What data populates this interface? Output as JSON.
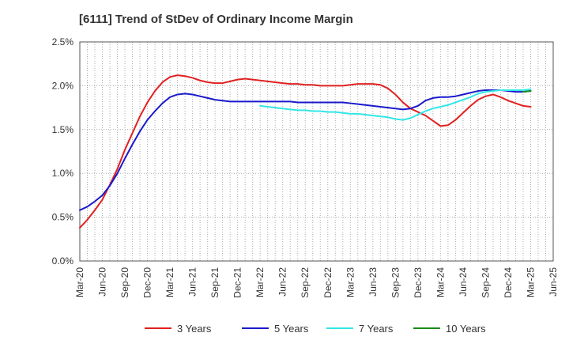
{
  "chart_data": {
    "type": "line",
    "title": "[6111]  Trend of StDev of Ordinary Income Margin",
    "xlabel": "",
    "ylabel": "",
    "x_ticks": [
      "Mar-20",
      "Jun-20",
      "Sep-20",
      "Dec-20",
      "Mar-21",
      "Jun-21",
      "Sep-21",
      "Dec-21",
      "Mar-22",
      "Jun-22",
      "Sep-22",
      "Dec-22",
      "Mar-23",
      "Jun-23",
      "Sep-23",
      "Dec-23",
      "Mar-24",
      "Jun-24",
      "Sep-24",
      "Dec-24",
      "Mar-25",
      "Jun-25"
    ],
    "y_ticks": [
      "0.0%",
      "0.5%",
      "1.0%",
      "1.5%",
      "2.0%",
      "2.5%"
    ],
    "ylim": [
      0,
      2.5
    ],
    "y_unit": "%",
    "grid": true,
    "legend_position": "bottom",
    "x": [
      "Mar-20",
      "Apr-20",
      "May-20",
      "Jun-20",
      "Jul-20",
      "Aug-20",
      "Sep-20",
      "Oct-20",
      "Nov-20",
      "Dec-20",
      "Jan-21",
      "Feb-21",
      "Mar-21",
      "Apr-21",
      "May-21",
      "Jun-21",
      "Jul-21",
      "Aug-21",
      "Sep-21",
      "Oct-21",
      "Nov-21",
      "Dec-21",
      "Jan-22",
      "Feb-22",
      "Mar-22",
      "Apr-22",
      "May-22",
      "Jun-22",
      "Jul-22",
      "Aug-22",
      "Sep-22",
      "Oct-22",
      "Nov-22",
      "Dec-22",
      "Jan-23",
      "Feb-23",
      "Mar-23",
      "Apr-23",
      "May-23",
      "Jun-23",
      "Jul-23",
      "Aug-23",
      "Sep-23",
      "Oct-23",
      "Nov-23",
      "Dec-23",
      "Jan-24",
      "Feb-24",
      "Mar-24",
      "Apr-24",
      "May-24",
      "Jun-24",
      "Jul-24",
      "Aug-24",
      "Sep-24",
      "Oct-24",
      "Nov-24",
      "Dec-24",
      "Jan-25",
      "Feb-25",
      "Mar-25"
    ],
    "series": [
      {
        "name": "3 Years",
        "color": "#e02020",
        "values": [
          0.38,
          0.47,
          0.58,
          0.7,
          0.87,
          1.05,
          1.27,
          1.46,
          1.65,
          1.81,
          1.94,
          2.04,
          2.1,
          2.12,
          2.11,
          2.09,
          2.06,
          2.04,
          2.03,
          2.03,
          2.05,
          2.07,
          2.08,
          2.07,
          2.06,
          2.05,
          2.04,
          2.03,
          2.02,
          2.02,
          2.01,
          2.01,
          2.0,
          2.0,
          2.0,
          2.0,
          2.01,
          2.02,
          2.02,
          2.02,
          2.01,
          1.97,
          1.9,
          1.81,
          1.74,
          1.7,
          1.66,
          1.6,
          1.54,
          1.55,
          1.61,
          1.69,
          1.77,
          1.84,
          1.88,
          1.9,
          1.87,
          1.83,
          1.8,
          1.77,
          1.76
        ]
      },
      {
        "name": "5 Years",
        "color": "#1a1acc",
        "values": [
          0.58,
          0.62,
          0.68,
          0.75,
          0.86,
          1.0,
          1.17,
          1.33,
          1.48,
          1.61,
          1.71,
          1.8,
          1.87,
          1.9,
          1.91,
          1.9,
          1.88,
          1.86,
          1.84,
          1.83,
          1.82,
          1.82,
          1.82,
          1.82,
          1.82,
          1.82,
          1.82,
          1.82,
          1.82,
          1.81,
          1.81,
          1.81,
          1.81,
          1.81,
          1.81,
          1.81,
          1.8,
          1.79,
          1.78,
          1.77,
          1.76,
          1.75,
          1.74,
          1.73,
          1.74,
          1.77,
          1.83,
          1.86,
          1.87,
          1.87,
          1.88,
          1.9,
          1.92,
          1.94,
          1.95,
          1.95,
          1.95,
          1.94,
          1.93,
          1.93,
          1.94
        ]
      },
      {
        "name": "7 Years",
        "color": "#33e6e6",
        "values": [
          null,
          null,
          null,
          null,
          null,
          null,
          null,
          null,
          null,
          null,
          null,
          null,
          null,
          null,
          null,
          null,
          null,
          null,
          null,
          null,
          null,
          null,
          null,
          null,
          1.77,
          1.76,
          1.75,
          1.74,
          1.73,
          1.72,
          1.72,
          1.71,
          1.71,
          1.7,
          1.7,
          1.69,
          1.68,
          1.68,
          1.67,
          1.66,
          1.65,
          1.64,
          1.62,
          1.61,
          1.63,
          1.67,
          1.71,
          1.74,
          1.76,
          1.78,
          1.81,
          1.84,
          1.87,
          1.91,
          1.93,
          1.94,
          1.95,
          1.95,
          1.95,
          1.95,
          1.96
        ]
      },
      {
        "name": "10 Years",
        "color": "#1a8c1a",
        "values": [
          null,
          null,
          null,
          null,
          null,
          null,
          null,
          null,
          null,
          null,
          null,
          null,
          null,
          null,
          null,
          null,
          null,
          null,
          null,
          null,
          null,
          null,
          null,
          null,
          null,
          null,
          null,
          null,
          null,
          null,
          null,
          null,
          null,
          null,
          null,
          null,
          null,
          null,
          null,
          null,
          null,
          null,
          null,
          null,
          null,
          null,
          null,
          null,
          null,
          null,
          null,
          null,
          null,
          null,
          null,
          null,
          null,
          null,
          null,
          1.93,
          1.94
        ]
      }
    ]
  }
}
